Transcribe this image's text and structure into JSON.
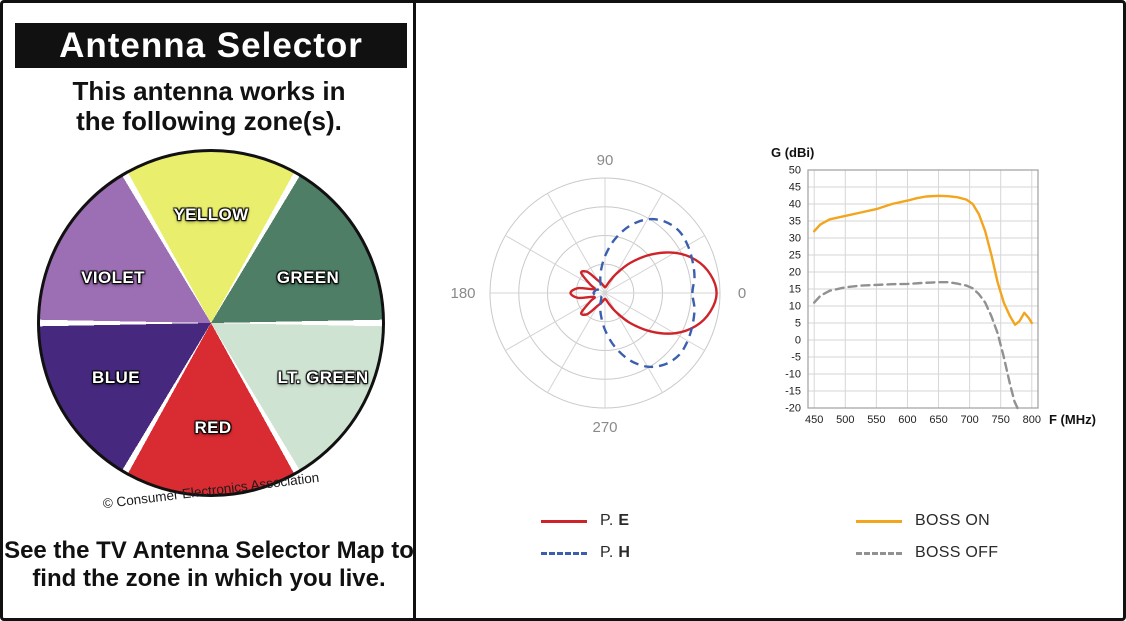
{
  "left_panel": {
    "title": "Antenna Selector",
    "subtitle_line1": "This antenna works in",
    "subtitle_line2": "the following zone(s).",
    "wheel": {
      "segments": [
        {
          "label": "YELLOW",
          "color": "#e9ee6d"
        },
        {
          "label": "GREEN",
          "color": "#4e7e66"
        },
        {
          "label": "LT. GREEN",
          "color": "#cfe3d2"
        },
        {
          "label": "RED",
          "color": "#d92b32"
        },
        {
          "label": "BLUE",
          "color": "#46297e"
        },
        {
          "label": "VIOLET",
          "color": "#9c6eb3"
        }
      ],
      "copyright": "© Consumer Electronics Association"
    },
    "footer_line1": "See the TV Antenna Selector Map to",
    "footer_line2": "find the zone in which you live."
  },
  "chart_data": [
    {
      "type": "polar",
      "title": "Antenna radiation pattern",
      "angle_tick_labels": [
        "90",
        "180",
        "0",
        "270"
      ],
      "grid": {
        "rings": 4,
        "spoke_step_deg": 30,
        "r_max": 1
      },
      "series": [
        {
          "name": "P. E",
          "name_prefix": "P.",
          "name_key": "E",
          "color": "#cd2329",
          "style": "solid",
          "theta_deg": [
            0,
            10,
            20,
            30,
            40,
            50,
            60,
            70,
            80,
            90,
            100,
            110,
            120,
            130,
            140,
            150,
            160,
            170,
            180,
            190,
            200,
            210,
            220,
            230,
            240,
            250,
            260,
            270,
            280,
            290,
            300,
            310,
            320,
            330,
            340,
            350
          ],
          "r": [
            0.97,
            0.93,
            0.84,
            0.7,
            0.52,
            0.34,
            0.19,
            0.1,
            0.06,
            0.05,
            0.06,
            0.09,
            0.13,
            0.24,
            0.27,
            0.15,
            0.1,
            0.24,
            0.3,
            0.24,
            0.1,
            0.15,
            0.27,
            0.24,
            0.13,
            0.09,
            0.06,
            0.05,
            0.06,
            0.1,
            0.19,
            0.34,
            0.52,
            0.7,
            0.84,
            0.93
          ]
        },
        {
          "name": "P. H",
          "name_prefix": "P.",
          "name_key": "H",
          "color": "#3b5fae",
          "style": "dashed",
          "theta_deg": [
            0,
            10,
            20,
            30,
            40,
            50,
            60,
            70,
            80,
            90,
            100,
            110,
            120,
            130,
            140,
            150,
            160,
            170,
            180,
            190,
            200,
            210,
            220,
            230,
            240,
            250,
            260,
            270,
            280,
            290,
            300,
            310,
            320,
            330,
            340,
            350
          ],
          "r": [
            0.76,
            0.79,
            0.81,
            0.83,
            0.84,
            0.81,
            0.74,
            0.62,
            0.47,
            0.32,
            0.2,
            0.12,
            0.07,
            0.05,
            0.05,
            0.06,
            0.08,
            0.09,
            0.1,
            0.09,
            0.08,
            0.06,
            0.05,
            0.05,
            0.07,
            0.12,
            0.2,
            0.32,
            0.47,
            0.62,
            0.74,
            0.81,
            0.84,
            0.83,
            0.81,
            0.79
          ]
        }
      ]
    },
    {
      "type": "line",
      "ylabel": "G (dBi)",
      "xlabel": "F (MHz)",
      "xlim": [
        440,
        810
      ],
      "ylim": [
        -20,
        50
      ],
      "x_ticks": [
        450,
        500,
        550,
        600,
        650,
        700,
        750,
        800
      ],
      "y_ticks": [
        50,
        45,
        40,
        35,
        30,
        25,
        20,
        15,
        10,
        5,
        0,
        -5,
        -10,
        -15,
        -20
      ],
      "grid": true,
      "series": [
        {
          "name": "BOSS ON",
          "color": "#f2a51d",
          "style": "solid",
          "x": [
            450,
            460,
            475,
            500,
            525,
            550,
            575,
            600,
            615,
            630,
            650,
            665,
            680,
            695,
            705,
            715,
            725,
            735,
            745,
            755,
            765,
            773,
            780,
            788,
            795,
            800
          ],
          "y": [
            32,
            34,
            35.5,
            36.5,
            37.5,
            38.5,
            40,
            41,
            41.7,
            42.2,
            42.4,
            42.3,
            42,
            41.3,
            40,
            37,
            32,
            25,
            17,
            11,
            7,
            4.5,
            5.5,
            8,
            6.5,
            5
          ]
        },
        {
          "name": "BOSS OFF",
          "color": "#8f9193",
          "style": "dashed",
          "x": [
            450,
            460,
            475,
            500,
            525,
            550,
            575,
            600,
            625,
            650,
            665,
            680,
            695,
            705,
            715,
            725,
            735,
            745,
            755,
            765,
            772,
            777
          ],
          "y": [
            11,
            13,
            14.5,
            15.5,
            16,
            16.2,
            16.4,
            16.5,
            16.8,
            17,
            17,
            16.6,
            16,
            15.2,
            13.5,
            11,
            7,
            2,
            -5,
            -13,
            -18,
            -20
          ]
        }
      ]
    }
  ]
}
